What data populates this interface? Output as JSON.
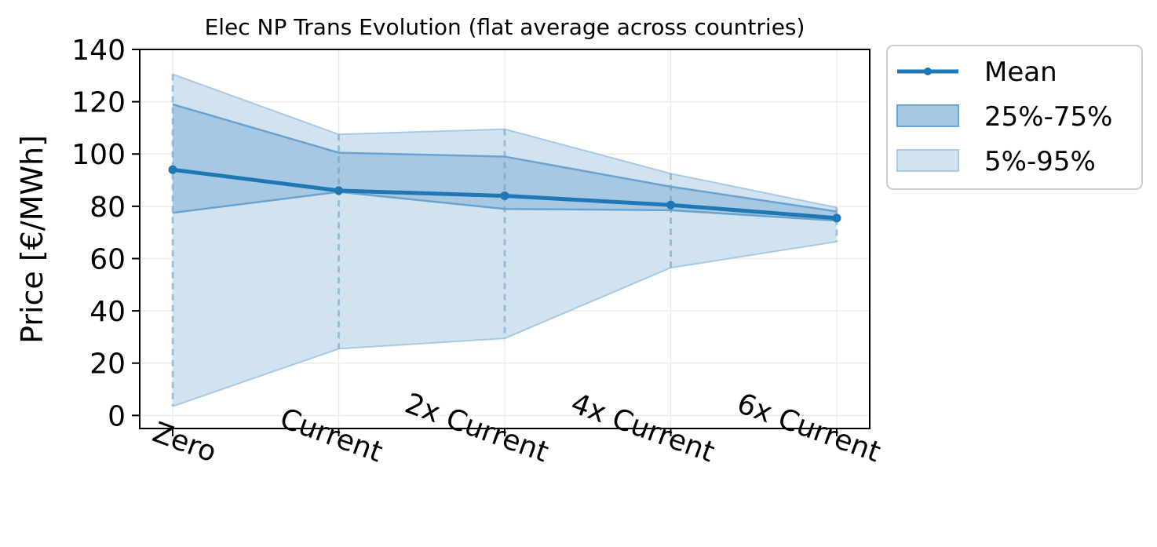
{
  "chart_data": {
    "type": "line",
    "title": "Elec NP Trans Evolution (flat average across countries)",
    "xlabel": "",
    "ylabel": "Price [€/MWh]",
    "categories": [
      "Zero",
      "Current",
      "2x Current",
      "4x Current",
      "6x Current"
    ],
    "ylim": [
      -5,
      140
    ],
    "yticks": [
      0,
      20,
      40,
      60,
      80,
      100,
      120,
      140
    ],
    "grid": true,
    "legend_position": "outside-top-right",
    "series": [
      {
        "name": "Mean",
        "kind": "line",
        "values": [
          94,
          86,
          84,
          80.5,
          75.5
        ]
      },
      {
        "name": "25%-75%",
        "kind": "band",
        "lower": [
          77.5,
          85.5,
          79,
          78.5,
          74.5
        ],
        "upper": [
          119,
          100.5,
          99,
          87.5,
          78
        ]
      },
      {
        "name": "5%-95%",
        "kind": "band",
        "lower": [
          3.5,
          25.5,
          29.5,
          56.5,
          66.5
        ],
        "upper": [
          130.5,
          107.5,
          109.5,
          92.5,
          79.5
        ]
      }
    ],
    "colors": {
      "line": "#1f77b4",
      "iqr_fill": "#a6c8e2",
      "range_fill": "#d2e3f0",
      "iqr_edge": "#6ba3d0",
      "range_edge": "#a9c9e4"
    }
  }
}
